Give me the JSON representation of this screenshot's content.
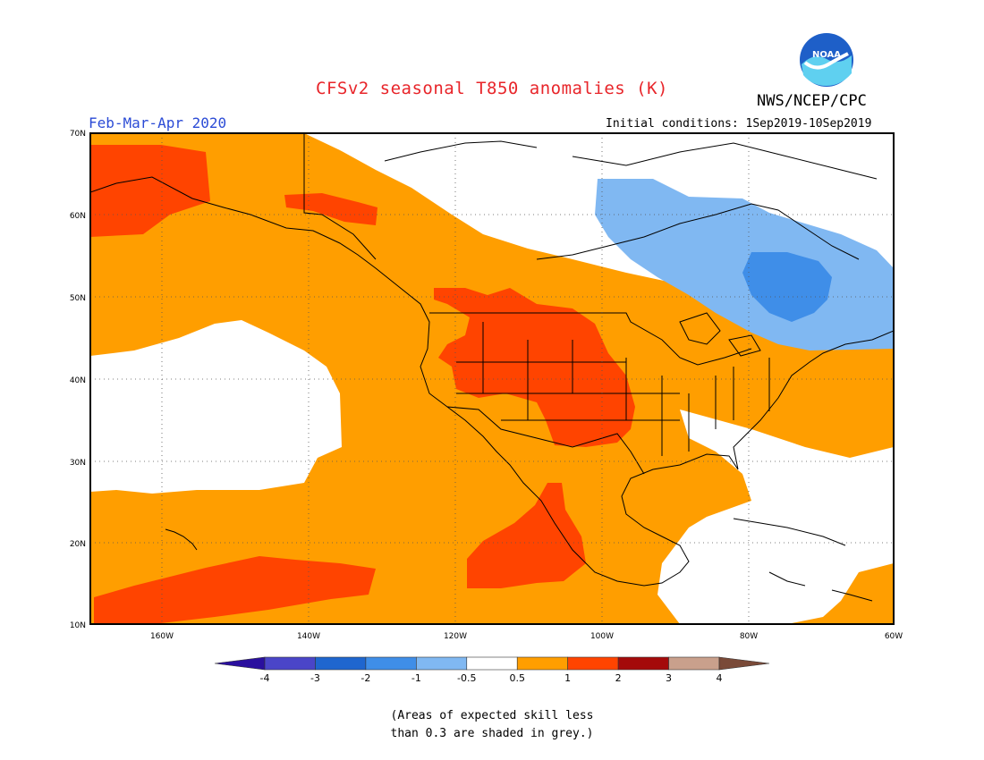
{
  "header": {
    "title": "CFSv2 seasonal T850 anomalies (K)",
    "agency": "NWS/NCEP/CPC",
    "logo_text": "NOAA",
    "season": "Feb-Mar-Apr 2020",
    "initial_conditions": "Initial conditions: 1Sep2019-10Sep2019"
  },
  "map": {
    "lat_labels": [
      "70N",
      "60N",
      "50N",
      "40N",
      "30N",
      "20N",
      "10N"
    ],
    "lon_labels": [
      "160W",
      "140W",
      "120W",
      "100W",
      "80W",
      "60W"
    ]
  },
  "colorbar": {
    "labels": [
      "-4",
      "-3",
      "-2",
      "-1",
      "-0.5",
      "0.5",
      "1",
      "2",
      "3",
      "4"
    ],
    "colors": [
      "#2a0f9e",
      "#4a45c8",
      "#1f66cf",
      "#3f8ee8",
      "#80b8f2",
      "#ffffff",
      "#ff9e00",
      "#ff4400",
      "#a40a0a",
      "#c9a08c",
      "#7a4a38"
    ]
  },
  "footnote": {
    "line1": "(Areas of expected skill less",
    "line2": "than 0.3 are shaded in grey.)"
  },
  "colors": {
    "warm1": "#ff9e00",
    "warm2": "#ff4400",
    "cool1": "#80b8f2",
    "cool2": "#3f8ee8",
    "neutral": "#ffffff",
    "title": "#e8252a",
    "season": "#2b4bd6"
  }
}
